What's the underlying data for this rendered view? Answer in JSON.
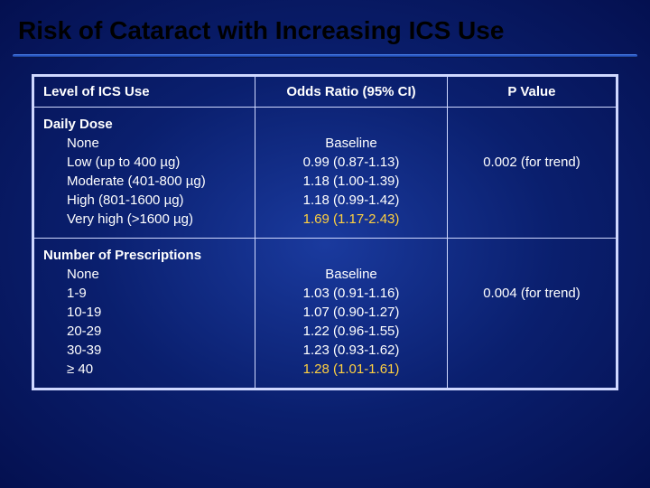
{
  "title": "Risk of Cataract with Increasing ICS Use",
  "colors": {
    "background_center": "#1a3a9e",
    "background_mid": "#0a1f6e",
    "background_edge": "#041050",
    "title_color": "#000000",
    "table_border": "#cfd8ff",
    "text_color": "#ffffff",
    "highlight_color": "#ffd040",
    "rule_top": "#4a7fe8",
    "rule_mid": "#2b5fd6",
    "rule_bottom": "#08164a"
  },
  "typography": {
    "title_fontsize": 28,
    "table_fontsize": 15,
    "font_family": "Verdana"
  },
  "table": {
    "headers": {
      "level": "Level of ICS Use",
      "or": "Odds Ratio (95% CI)",
      "p": "P Value"
    },
    "section1": {
      "header": "Daily Dose",
      "rows": [
        {
          "level": "None",
          "or": "Baseline",
          "p": "",
          "highlight": false
        },
        {
          "level": "Low (up to 400 µg)",
          "or": "0.99 (0.87-1.13)",
          "p": "0.002 (for trend)",
          "highlight": false
        },
        {
          "level": "Moderate (401-800 µg)",
          "or": "1.18 (1.00-1.39)",
          "p": "",
          "highlight": false
        },
        {
          "level": "High (801-1600 µg)",
          "or": "1.18 (0.99-1.42)",
          "p": "",
          "highlight": false
        },
        {
          "level": "Very high (>1600 µg)",
          "or": "1.69 (1.17-2.43)",
          "p": "",
          "highlight": true
        }
      ]
    },
    "section2": {
      "header": "Number of Prescriptions",
      "rows": [
        {
          "level": "None",
          "or": "Baseline",
          "p": "",
          "highlight": false
        },
        {
          "level": "1-9",
          "or": "1.03 (0.91-1.16)",
          "p": "0.004 (for trend)",
          "highlight": false
        },
        {
          "level": "10-19",
          "or": "1.07 (0.90-1.27)",
          "p": "",
          "highlight": false
        },
        {
          "level": "20-29",
          "or": "1.22 (0.96-1.55)",
          "p": "",
          "highlight": false
        },
        {
          "level": "30-39",
          "or": "1.23 (0.93-1.62)",
          "p": "",
          "highlight": false
        },
        {
          "level": "≥ 40",
          "or": "1.28 (1.01-1.61)",
          "p": "",
          "highlight": true
        }
      ]
    }
  }
}
